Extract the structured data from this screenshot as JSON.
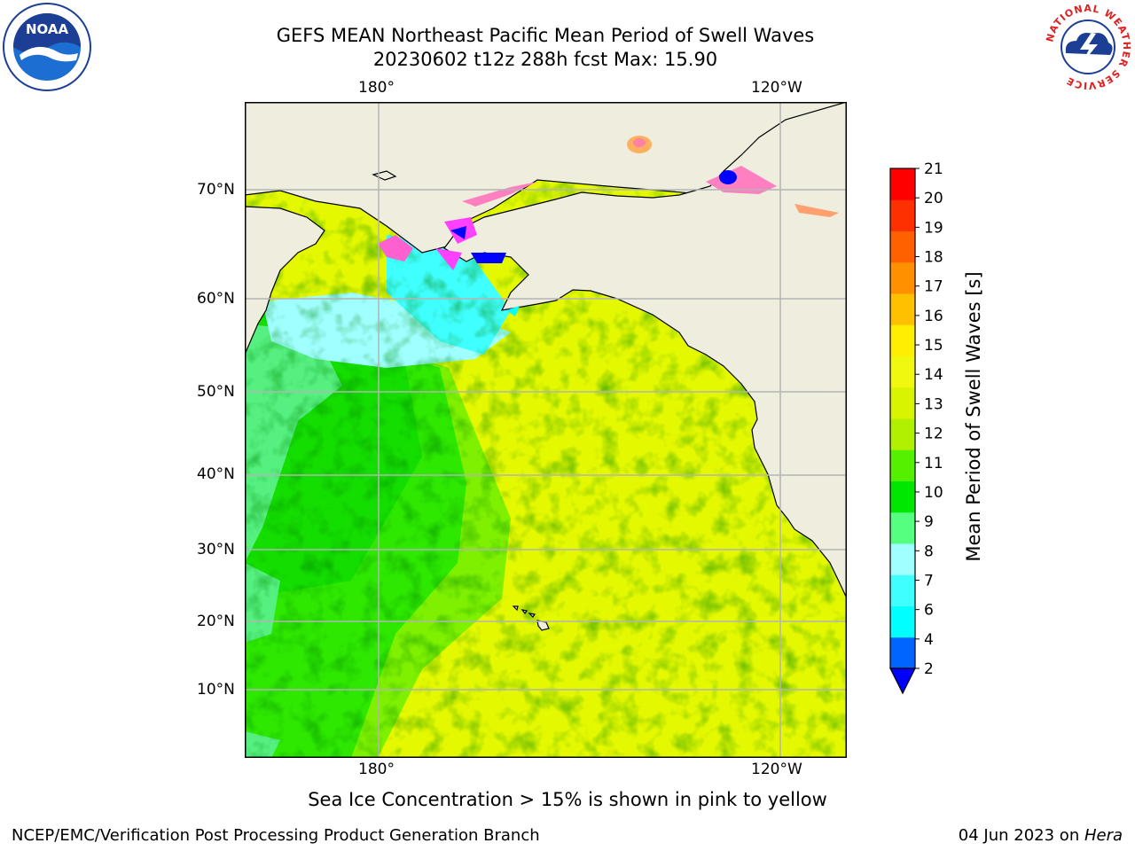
{
  "title": {
    "line1": "GEFS MEAN Northeast Pacific Mean Period of Swell Waves",
    "line2": "20230602 t12z 288h fcst   Max: 15.90"
  },
  "map": {
    "lon_ticks_top": [
      "180°",
      "120°W"
    ],
    "lon_ticks_bottom": [
      "180°",
      "120°W"
    ],
    "lat_ticks": [
      "70°N",
      "60°N",
      "50°N",
      "40°N",
      "30°N",
      "20°N",
      "10°N"
    ],
    "land_color": "#efedde",
    "grid_color": "#b4b4b4"
  },
  "colorbar": {
    "label": "Mean Period of Swell Waves [s]",
    "ticks": [
      "2",
      "4",
      "6",
      "7",
      "8",
      "9",
      "10",
      "11",
      "12",
      "13",
      "14",
      "15",
      "16",
      "17",
      "18",
      "19",
      "20",
      "21"
    ],
    "colors": [
      "#0064ff",
      "#00ffff",
      "#40ffff",
      "#a0ffff",
      "#55ff80",
      "#00e800",
      "#55f000",
      "#b0f000",
      "#d8f400",
      "#f0f810",
      "#ffee00",
      "#ffc000",
      "#ff9000",
      "#ff6000",
      "#ff3000",
      "#ff0000"
    ],
    "extend_color": "#0000ff"
  },
  "note": "Sea Ice Concentration > 15% is shown in pink to yellow",
  "footer": {
    "left": "NCEP/EMC/Verification Post Processing Product Generation Branch",
    "date": "04 Jun 2023 on ",
    "machine": "Hera"
  },
  "logos": {
    "noaa": "NOAA",
    "nws_ring": "NATIONAL WEATHER SERVICE"
  }
}
